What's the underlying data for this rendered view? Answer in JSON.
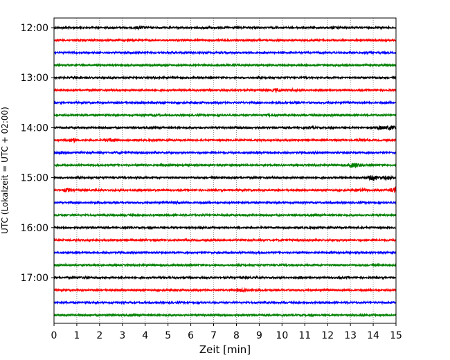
{
  "chart_data": {
    "type": "line",
    "title": "",
    "xlabel": "Zeit  [min]",
    "ylabel": "UTC (Lokalzeit = UTC + 02:00)",
    "xlim": [
      0,
      15
    ],
    "x_ticks": [
      "0",
      "1",
      "2",
      "3",
      "4",
      "5",
      "6",
      "7",
      "8",
      "9",
      "10",
      "11",
      "12",
      "13",
      "14",
      "15"
    ],
    "y_tick_labels": [
      {
        "label": "12:00",
        "row": 0
      },
      {
        "label": "13:00",
        "row": 4
      },
      {
        "label": "14:00",
        "row": 8
      },
      {
        "label": "15:00",
        "row": 12
      },
      {
        "label": "16:00",
        "row": 16
      },
      {
        "label": "17:00",
        "row": 20
      }
    ],
    "grid": "vertical dotted",
    "row_colors": [
      "#000000",
      "#ff0000",
      "#0000ff",
      "#008000"
    ],
    "traces": [
      {
        "start": "12:00",
        "events": [
          [
            3.8,
            2.2
          ],
          [
            6.7,
            1.6
          ],
          [
            12.4,
            1.5
          ]
        ]
      },
      {
        "start": "12:15",
        "events": [
          [
            5.5,
            1.3
          ]
        ]
      },
      {
        "start": "12:30",
        "events": [
          [
            3.4,
            1.4
          ],
          [
            7.2,
            1.2
          ]
        ]
      },
      {
        "start": "12:45",
        "events": [
          [
            8.2,
            1.2
          ],
          [
            13.0,
            1.2
          ]
        ]
      },
      {
        "start": "13:00",
        "events": [
          [
            2.5,
            1.2
          ],
          [
            13.8,
            1.3
          ]
        ]
      },
      {
        "start": "13:15",
        "events": [
          [
            8.0,
            1.3
          ],
          [
            9.8,
            2.6
          ],
          [
            10.4,
            2.0
          ]
        ]
      },
      {
        "start": "13:30",
        "events": [
          [
            4.2,
            1.3
          ],
          [
            10.5,
            1.2
          ]
        ]
      },
      {
        "start": "13:45",
        "events": [
          [
            4.5,
            1.4
          ],
          [
            9.5,
            1.7
          ],
          [
            12.3,
            1.5
          ]
        ]
      },
      {
        "start": "14:00",
        "events": [
          [
            8.2,
            1.6
          ],
          [
            11.3,
            1.5
          ],
          [
            14.3,
            2.6
          ],
          [
            14.8,
            3.0
          ]
        ]
      },
      {
        "start": "14:15",
        "events": [
          [
            0.8,
            3.0
          ],
          [
            2.5,
            2.4
          ],
          [
            13.5,
            1.6
          ]
        ]
      },
      {
        "start": "14:30",
        "events": [
          [
            0.4,
            2.0
          ],
          [
            2.8,
            1.5
          ]
        ]
      },
      {
        "start": "14:45",
        "events": [
          [
            4.8,
            1.4
          ],
          [
            13.2,
            3.2
          ]
        ]
      },
      {
        "start": "15:00",
        "events": [
          [
            3.8,
            1.3
          ],
          [
            14.0,
            3.4
          ],
          [
            14.6,
            2.8
          ]
        ]
      },
      {
        "start": "15:15",
        "events": [
          [
            0.6,
            2.6
          ],
          [
            13.5,
            2.0
          ],
          [
            15.0,
            4.5
          ]
        ]
      },
      {
        "start": "15:30",
        "events": [
          [
            5.4,
            1.6
          ],
          [
            12.0,
            1.2
          ]
        ]
      },
      {
        "start": "15:45",
        "events": [
          [
            3.0,
            1.3
          ],
          [
            7.5,
            1.2
          ]
        ]
      },
      {
        "start": "16:00",
        "events": [
          [
            3.1,
            1.3
          ],
          [
            10.1,
            1.3
          ],
          [
            13.5,
            1.2
          ]
        ]
      },
      {
        "start": "16:15",
        "events": [
          [
            6.0,
            1.2
          ]
        ]
      },
      {
        "start": "16:30",
        "events": [
          [
            9.0,
            1.1
          ]
        ]
      },
      {
        "start": "16:45",
        "events": [
          [
            11.0,
            1.1
          ]
        ]
      },
      {
        "start": "17:00",
        "events": [
          [
            1.4,
            1.4
          ],
          [
            12.7,
            1.3
          ]
        ]
      },
      {
        "start": "17:15",
        "events": [
          [
            8.3,
            2.6
          ]
        ]
      },
      {
        "start": "17:30",
        "events": [
          [
            4.0,
            1.1
          ]
        ]
      },
      {
        "start": "17:45",
        "events": [
          [
            2.4,
            1.2
          ],
          [
            10.0,
            1.1
          ]
        ]
      }
    ]
  }
}
